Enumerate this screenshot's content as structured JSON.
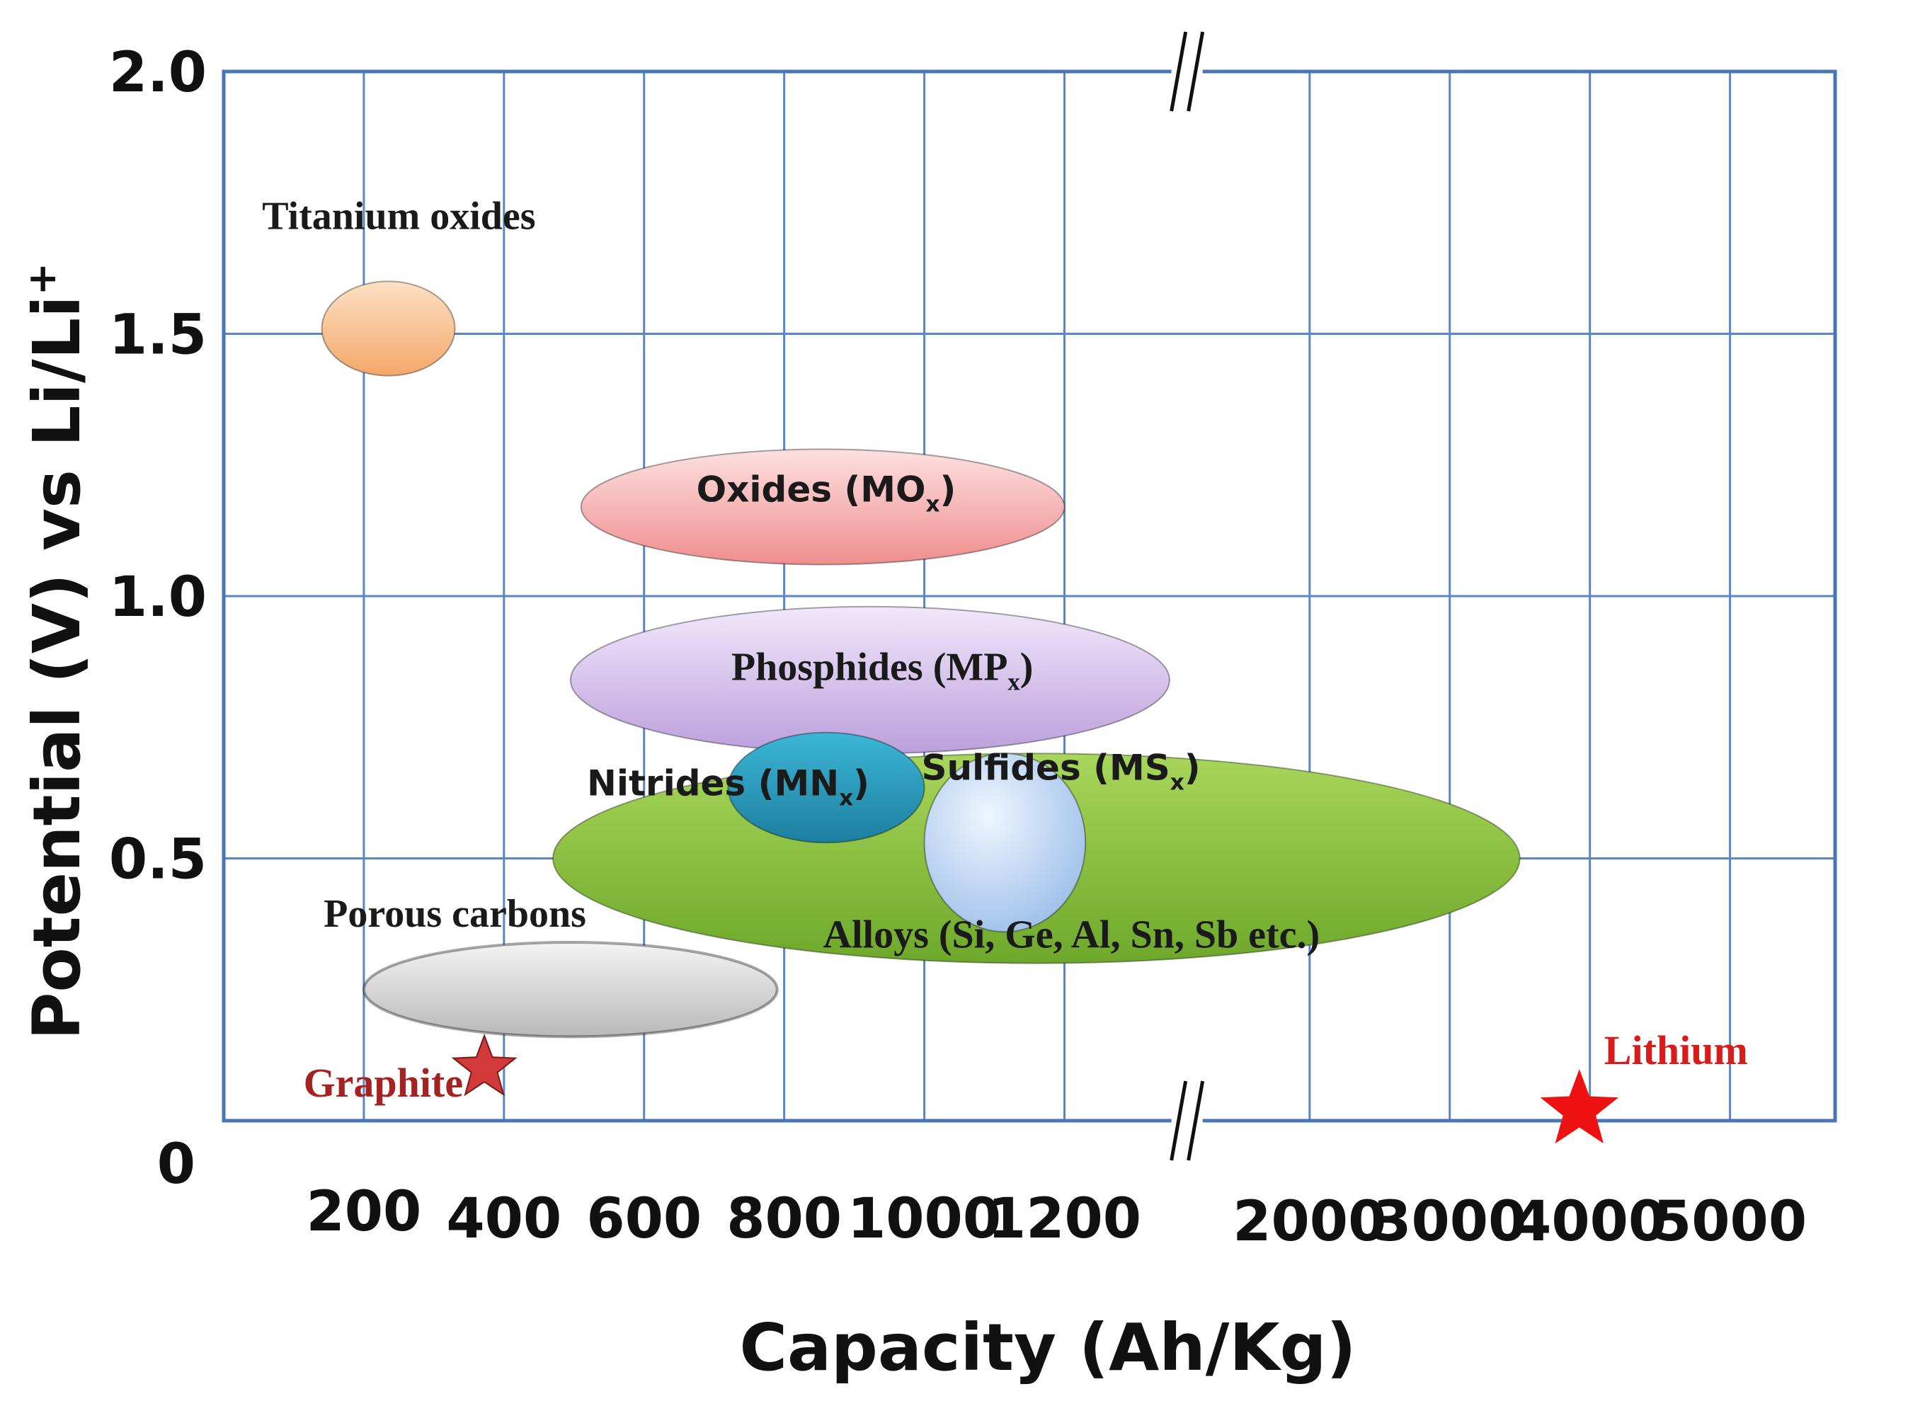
{
  "chart_data": {
    "type": "region-map",
    "xlabel": "Capacity (Ah/Kg)",
    "ylabel": "Potential (V) vs Li/Li",
    "ylabel_sup": "+",
    "x_ticks": [
      "200",
      "400",
      "600",
      "800",
      "1000",
      "1200",
      "2000",
      "3000",
      "4000",
      "5000"
    ],
    "x_tick_positions": [
      200,
      400,
      600,
      800,
      1000,
      1200,
      1550,
      1750,
      1950,
      2150
    ],
    "y_ticks": [
      "0",
      "0.5",
      "1.0",
      "1.5",
      "2.0"
    ],
    "y_tick_values": [
      0,
      0.5,
      1.0,
      1.5,
      2.0
    ],
    "xlim": [
      0,
      2300
    ],
    "ylim": [
      0,
      2.0
    ],
    "axis_break": {
      "between": "1200",
      "and": "2000",
      "symbol": "//"
    },
    "grid": true,
    "regions": [
      {
        "label": "Titanium oxides",
        "x_range": [
          140,
          330
        ],
        "y_range": [
          1.42,
          1.6
        ],
        "color": "#f5b27a",
        "label_x": 250,
        "label_y": 1.7
      },
      {
        "label": "Oxides (MO",
        "label_sub": "x",
        "label_tail": ")",
        "x_range": [
          510,
          1200
        ],
        "y_range": [
          1.06,
          1.28
        ],
        "color": "#f4a3a3",
        "label_x": 860,
        "label_y": 1.18
      },
      {
        "label": "Phosphides (MP",
        "label_sub": "x",
        "label_tail": ")",
        "x_range": [
          495,
          1350
        ],
        "y_range": [
          0.7,
          0.98
        ],
        "color": "#cdb5e6",
        "label_x": 940,
        "label_y": 0.84
      },
      {
        "label": "Alloys (Si, Ge, Al, Sn, Sb etc.)",
        "x_range": [
          470,
          1850
        ],
        "y_range": [
          0.3,
          0.7
        ],
        "color": "#8cc63f",
        "label_x": 1210,
        "label_y": 0.33
      },
      {
        "label": "Nitrides (MN",
        "label_sub": "x",
        "label_tail": ")",
        "x_range": [
          720,
          1000
        ],
        "y_range": [
          0.53,
          0.74
        ],
        "color": "#2ea6c8",
        "label_x": 720,
        "label_y": 0.62
      },
      {
        "label": "Sulfides (MS",
        "label_sub": "x",
        "label_tail": ")",
        "x_range": [
          1000,
          1230
        ],
        "y_range": [
          0.36,
          0.7
        ],
        "color": "#c9def7",
        "label_x": 1195,
        "label_y": 0.65
      },
      {
        "label": "Porous carbons",
        "x_range": [
          200,
          790
        ],
        "y_range": [
          0.16,
          0.34
        ],
        "color": "#d2d2d2",
        "label_x": 330,
        "label_y": 0.37
      }
    ],
    "points": [
      {
        "label": "Graphite",
        "x": 372,
        "y": 0.1,
        "color": "#d23a3a",
        "label_color": "#a52222"
      },
      {
        "label": "Lithium",
        "x": 3860,
        "x_position": 1935,
        "y": 0.02,
        "color": "#ee1111",
        "label_color": "#d81b1b"
      }
    ]
  },
  "colors": {
    "axis": "#4a76b5",
    "grid": "#5b86c4",
    "tick_text": "#111111"
  }
}
